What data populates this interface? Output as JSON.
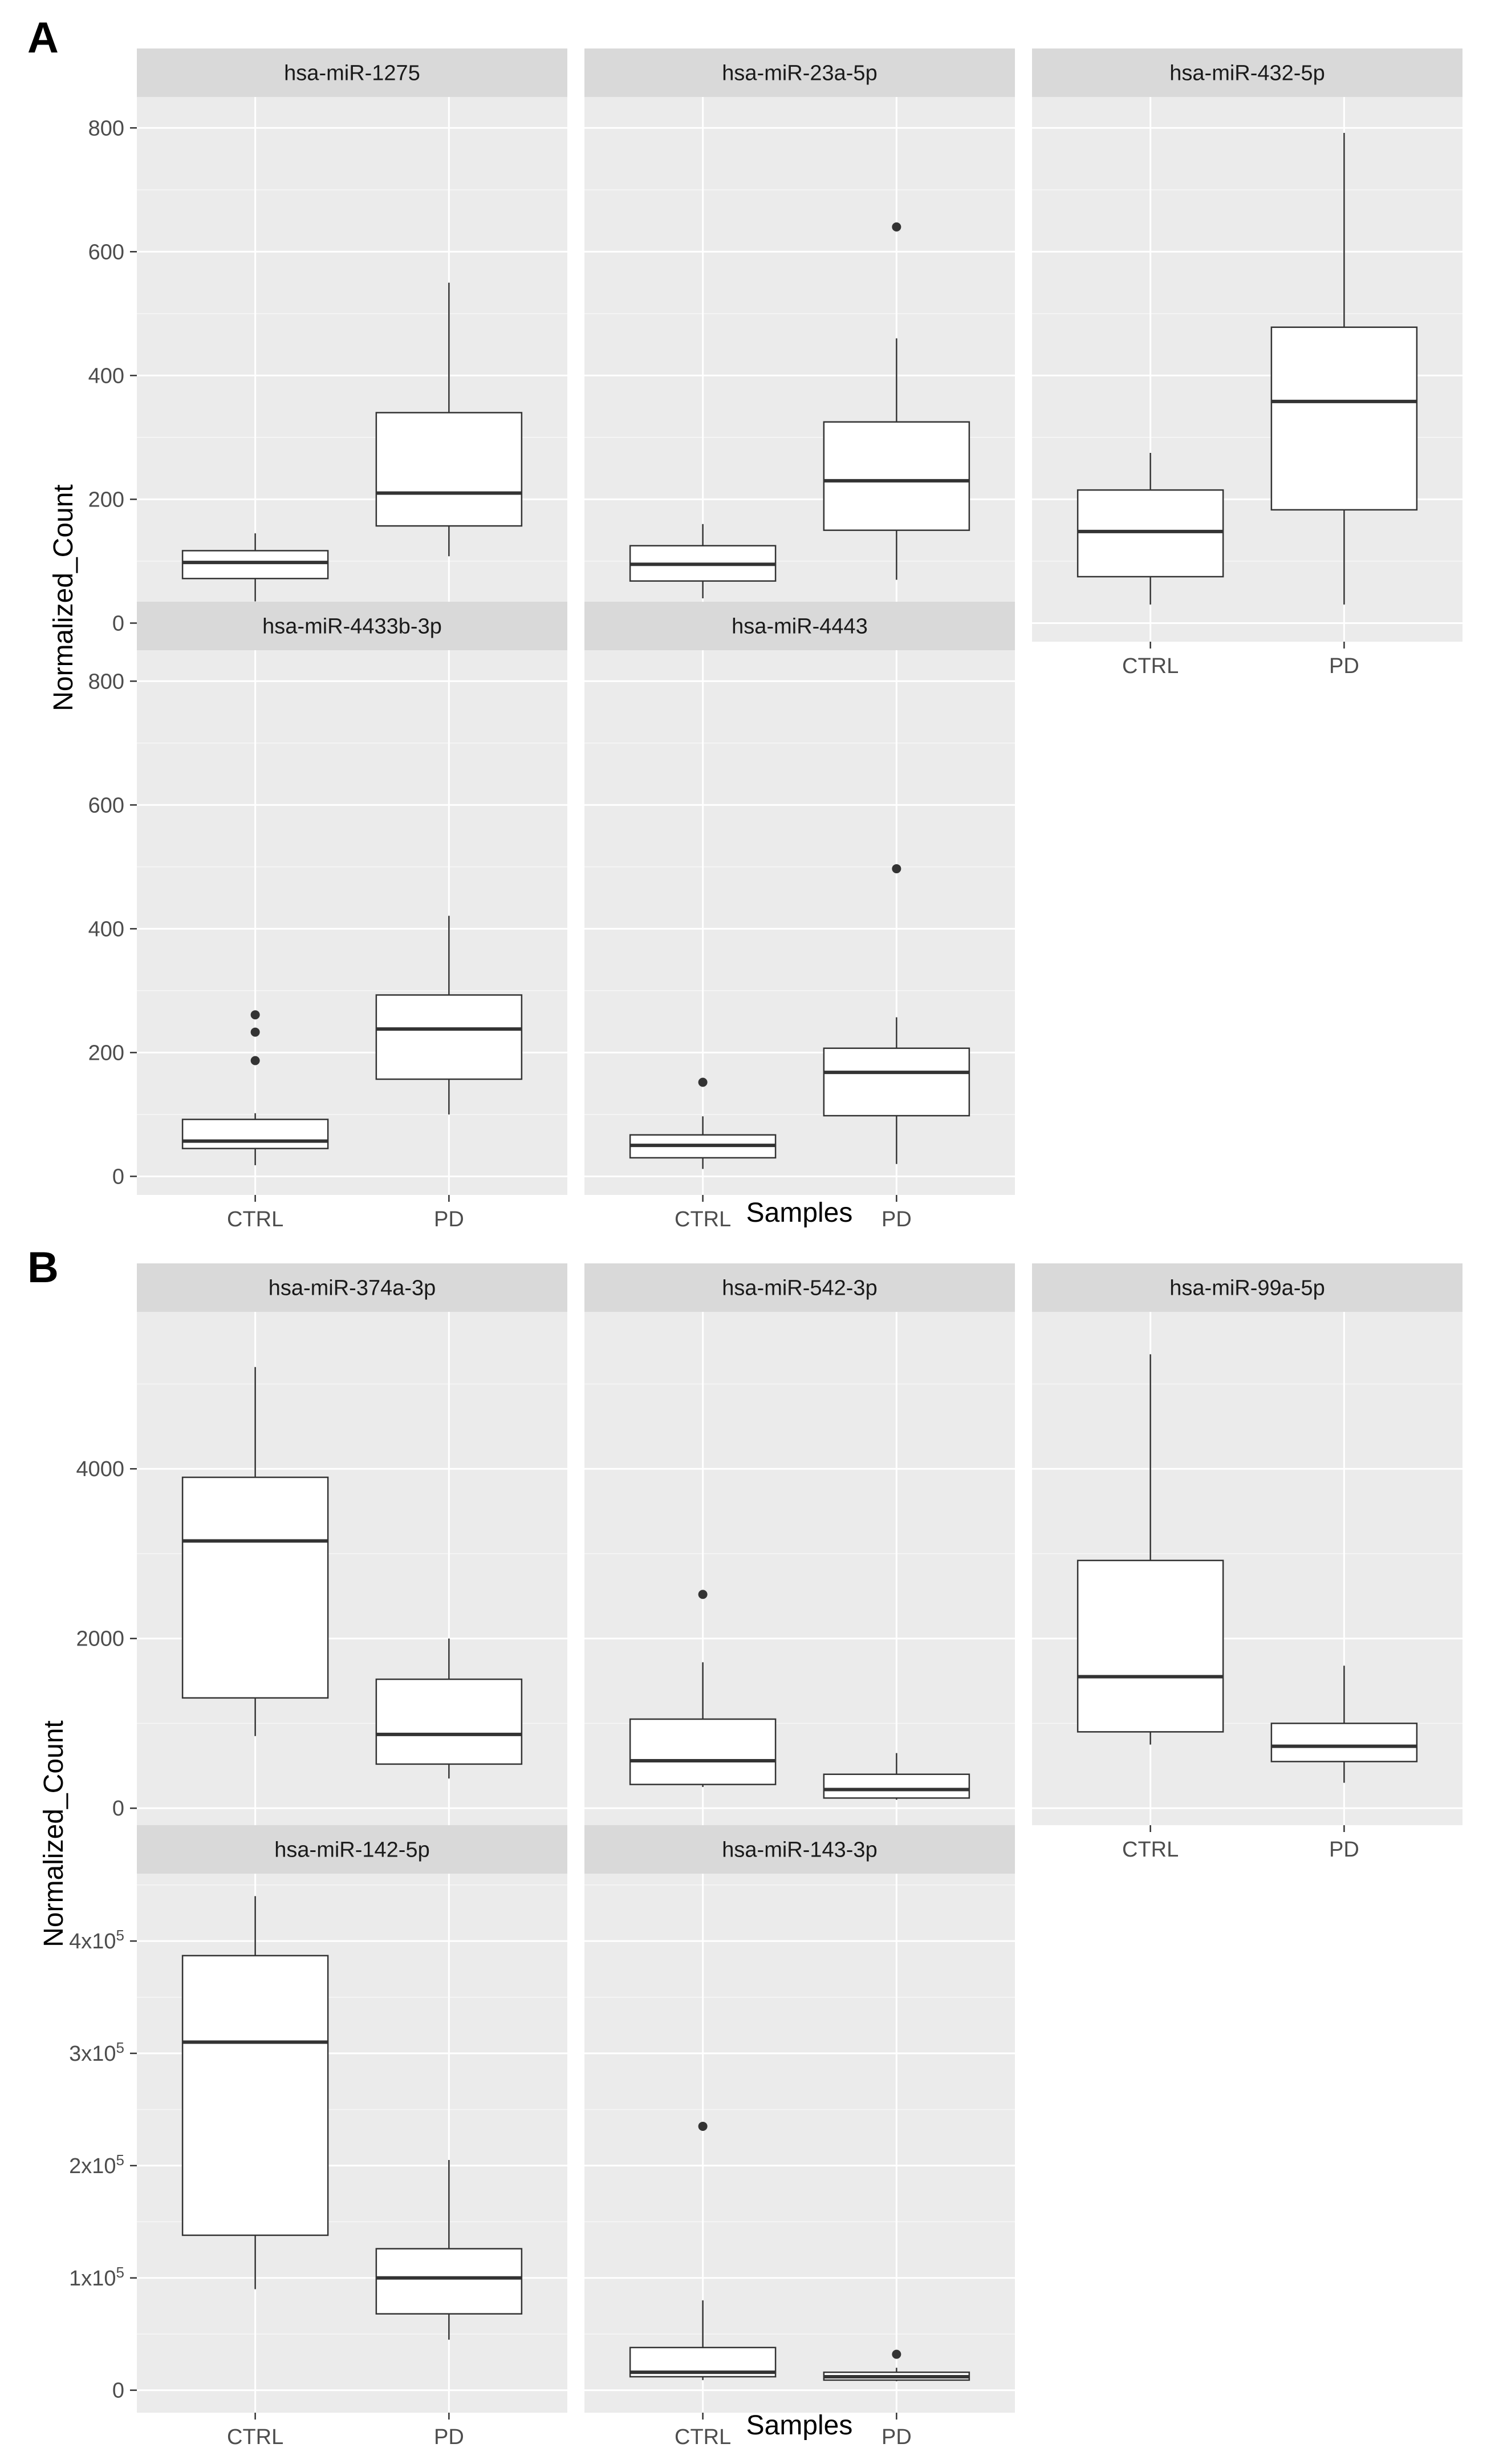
{
  "panel_labels": [
    "A",
    "B"
  ],
  "colors": {
    "panel_bg": "#ebebeb",
    "strip_bg": "#d9d9d9",
    "grid_major": "#ffffff",
    "box_fill": "#ffffff",
    "box_line": "#333333"
  },
  "chart_data": [
    {
      "type": "boxplot",
      "panel": "A",
      "xlabel": "Samples",
      "ylabel": "Normalized_Count",
      "ylim": [
        -30,
        850
      ],
      "y_ticks": [
        0,
        200,
        400,
        600,
        800
      ],
      "y_tick_labels": [
        "0",
        "200",
        "400",
        "600",
        "800"
      ],
      "categories": [
        "CTRL",
        "PD"
      ],
      "facets": [
        {
          "title": "hsa-miR-1275",
          "boxes": [
            {
              "group": "CTRL",
              "whisker_low": 35,
              "q1": 72,
              "median": 98,
              "q3": 117,
              "whisker_high": 145,
              "outliers": []
            },
            {
              "group": "PD",
              "whisker_low": 108,
              "q1": 157,
              "median": 210,
              "q3": 340,
              "whisker_high": 550,
              "outliers": []
            }
          ]
        },
        {
          "title": "hsa-miR-23a-5p",
          "boxes": [
            {
              "group": "CTRL",
              "whisker_low": 40,
              "q1": 68,
              "median": 95,
              "q3": 125,
              "whisker_high": 160,
              "outliers": []
            },
            {
              "group": "PD",
              "whisker_low": 70,
              "q1": 150,
              "median": 230,
              "q3": 325,
              "whisker_high": 460,
              "outliers": [
                640
              ]
            }
          ]
        },
        {
          "title": "hsa-miR-432-5p",
          "boxes": [
            {
              "group": "CTRL",
              "whisker_low": 30,
              "q1": 75,
              "median": 148,
              "q3": 215,
              "whisker_high": 275,
              "outliers": []
            },
            {
              "group": "PD",
              "whisker_low": 30,
              "q1": 183,
              "median": 358,
              "q3": 478,
              "whisker_high": 792,
              "outliers": []
            }
          ]
        },
        {
          "title": "hsa-miR-4433b-3p",
          "boxes": [
            {
              "group": "CTRL",
              "whisker_low": 18,
              "q1": 45,
              "median": 57,
              "q3": 92,
              "whisker_high": 102,
              "outliers": [
                187,
                233,
                261
              ]
            },
            {
              "group": "PD",
              "whisker_low": 100,
              "q1": 157,
              "median": 238,
              "q3": 293,
              "whisker_high": 421,
              "outliers": []
            }
          ]
        },
        {
          "title": "hsa-miR-4443",
          "boxes": [
            {
              "group": "CTRL",
              "whisker_low": 12,
              "q1": 30,
              "median": 50,
              "q3": 67,
              "whisker_high": 97,
              "outliers": [
                152
              ]
            },
            {
              "group": "PD",
              "whisker_low": 20,
              "q1": 98,
              "median": 168,
              "q3": 207,
              "whisker_high": 257,
              "outliers": [
                497
              ]
            }
          ]
        }
      ]
    },
    {
      "type": "boxplot",
      "panel": "B",
      "xlabel": "Samples",
      "ylabel": "Normalized_Count",
      "scales": "free_y",
      "categories": [
        "CTRL",
        "PD"
      ],
      "facet_rows": [
        {
          "ylim": [
            -200,
            5850
          ],
          "y_ticks": [
            0,
            2000,
            4000
          ],
          "y_tick_labels": [
            "0",
            "2000",
            "4000"
          ],
          "facets": [
            {
              "title": "hsa-miR-374a-3p",
              "boxes": [
                {
                  "group": "CTRL",
                  "whisker_low": 850,
                  "q1": 1300,
                  "median": 3150,
                  "q3": 3900,
                  "whisker_high": 5200,
                  "outliers": []
                },
                {
                  "group": "PD",
                  "whisker_low": 350,
                  "q1": 520,
                  "median": 870,
                  "q3": 1520,
                  "whisker_high": 2000,
                  "outliers": []
                }
              ]
            },
            {
              "title": "hsa-miR-542-3p",
              "boxes": [
                {
                  "group": "CTRL",
                  "whisker_low": 250,
                  "q1": 280,
                  "median": 560,
                  "q3": 1050,
                  "whisker_high": 1720,
                  "outliers": [
                    2520
                  ]
                },
                {
                  "group": "PD",
                  "whisker_low": 100,
                  "q1": 120,
                  "median": 220,
                  "q3": 400,
                  "whisker_high": 650,
                  "outliers": []
                }
              ]
            },
            {
              "title": "hsa-miR-99a-5p",
              "boxes": [
                {
                  "group": "CTRL",
                  "whisker_low": 750,
                  "q1": 900,
                  "median": 1550,
                  "q3": 2920,
                  "whisker_high": 5350,
                  "outliers": []
                },
                {
                  "group": "PD",
                  "whisker_low": 300,
                  "q1": 550,
                  "median": 730,
                  "q3": 1000,
                  "whisker_high": 1680,
                  "outliers": []
                }
              ]
            }
          ]
        },
        {
          "ylim": [
            -20000,
            460000
          ],
          "y_ticks": [
            0,
            100000,
            200000,
            300000,
            400000
          ],
          "y_tick_labels": [
            {
              "base": "0",
              "exp": ""
            },
            {
              "base": "1x10",
              "exp": "5"
            },
            {
              "base": "2x10",
              "exp": "5"
            },
            {
              "base": "3x10",
              "exp": "5"
            },
            {
              "base": "4x10",
              "exp": "5"
            }
          ],
          "facets": [
            {
              "title": "hsa-miR-142-5p",
              "boxes": [
                {
                  "group": "CTRL",
                  "whisker_low": 90000,
                  "q1": 138000,
                  "median": 310000,
                  "q3": 387000,
                  "whisker_high": 440000,
                  "outliers": []
                },
                {
                  "group": "PD",
                  "whisker_low": 45000,
                  "q1": 68000,
                  "median": 100000,
                  "q3": 126000,
                  "whisker_high": 205000,
                  "outliers": []
                }
              ]
            },
            {
              "title": "hsa-miR-143-3p",
              "boxes": [
                {
                  "group": "CTRL",
                  "whisker_low": 9000,
                  "q1": 12000,
                  "median": 16000,
                  "q3": 38000,
                  "whisker_high": 80000,
                  "outliers": [
                    235000
                  ]
                },
                {
                  "group": "PD",
                  "whisker_low": 8000,
                  "q1": 9000,
                  "median": 12000,
                  "q3": 16000,
                  "whisker_high": 20000,
                  "outliers": [
                    32000
                  ]
                }
              ]
            }
          ]
        }
      ]
    }
  ]
}
